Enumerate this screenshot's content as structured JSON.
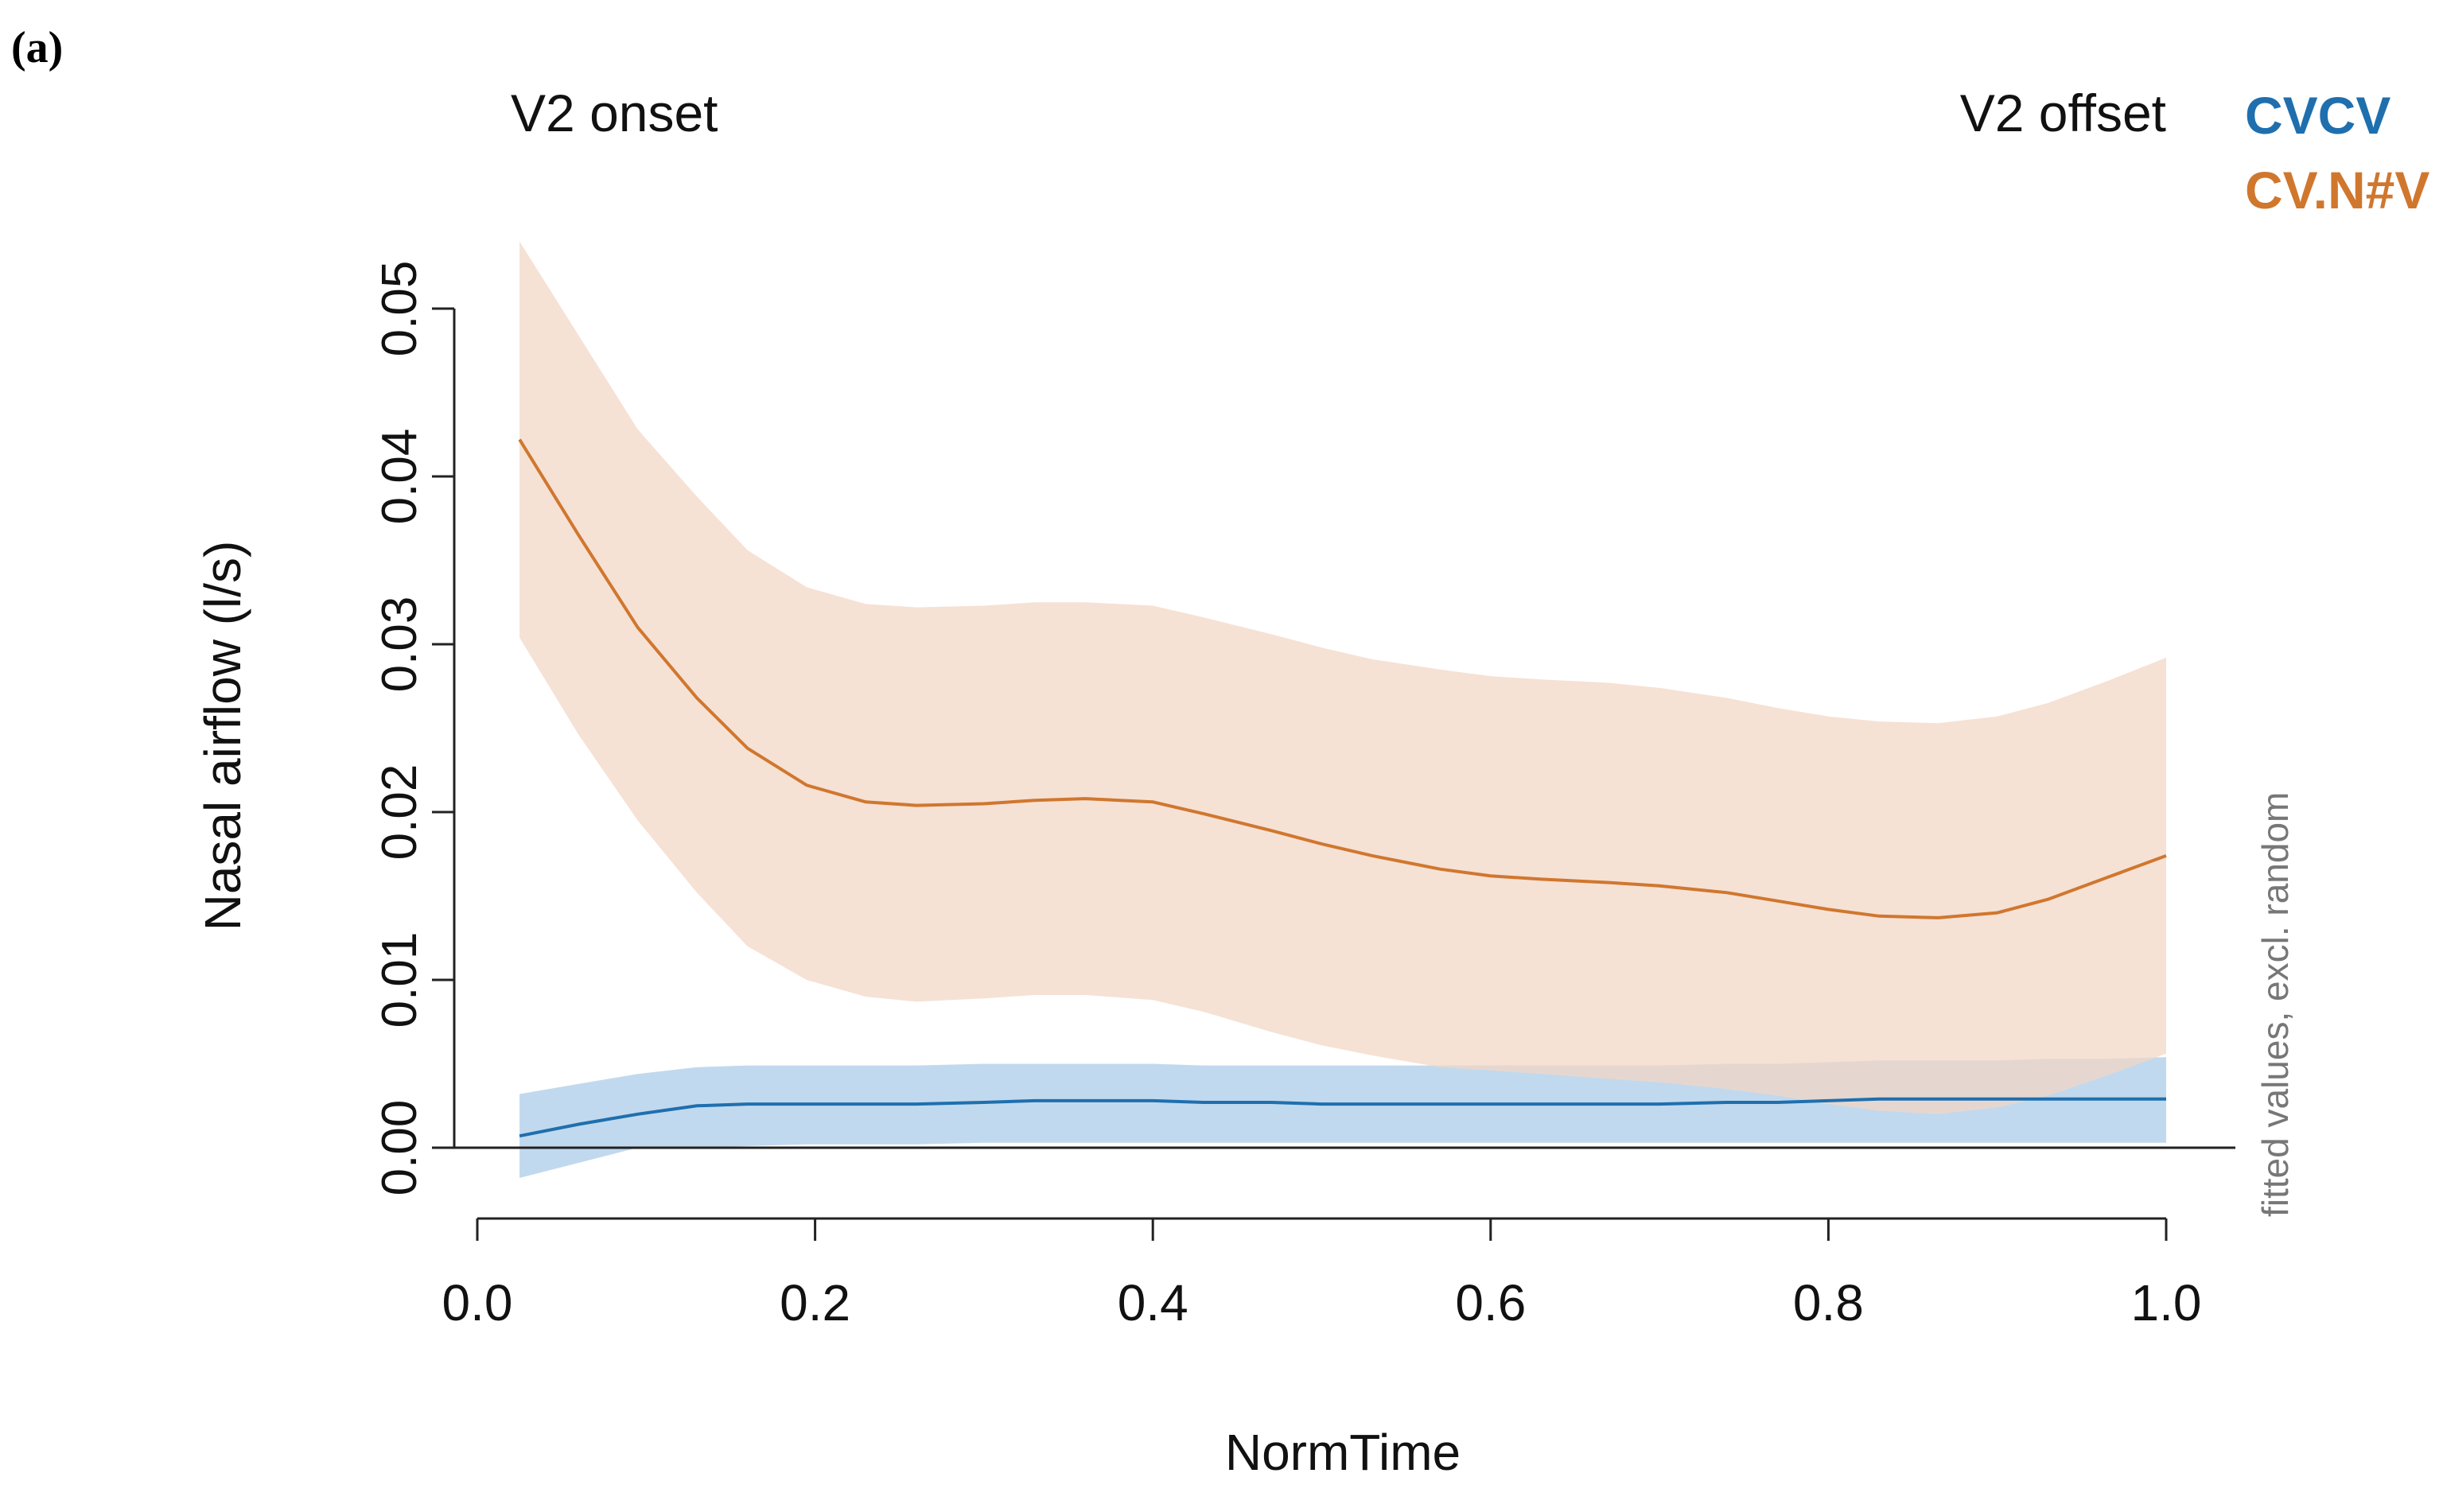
{
  "panel_label": "(a)",
  "annotations": {
    "onset": "V2 onset",
    "offset": "V2 offset",
    "side_note": "fitted values, excl. random"
  },
  "chart_data": {
    "type": "line",
    "title": "",
    "xlabel": "NormTime",
    "ylabel": "Nasal airflow (l/s)",
    "xlim": [
      0.0,
      1.0
    ],
    "ylim": [
      0.0,
      0.05
    ],
    "x_ticks": [
      "0.0",
      "0.2",
      "0.4",
      "0.6",
      "0.8",
      "1.0"
    ],
    "y_ticks": [
      "0.00",
      "0.01",
      "0.02",
      "0.03",
      "0.04",
      "0.05"
    ],
    "x_tick_values": [
      0.0,
      0.2,
      0.4,
      0.6,
      0.8,
      1.0
    ],
    "y_tick_values": [
      0.0,
      0.01,
      0.02,
      0.03,
      0.04,
      0.05
    ],
    "grid": false,
    "legend_position": "top-right",
    "x": [
      0.025,
      0.06,
      0.095,
      0.13,
      0.16,
      0.195,
      0.23,
      0.26,
      0.3,
      0.33,
      0.36,
      0.4,
      0.43,
      0.47,
      0.5,
      0.53,
      0.57,
      0.6,
      0.63,
      0.67,
      0.7,
      0.74,
      0.77,
      0.8,
      0.83,
      0.865,
      0.9,
      0.93,
      0.965,
      1.0
    ],
    "series": [
      {
        "name": "CVCV",
        "color": "#1f6fae",
        "band_color": "#a9cbe8",
        "values": [
          0.0007,
          0.0014,
          0.002,
          0.0025,
          0.0026,
          0.0026,
          0.0026,
          0.0026,
          0.0027,
          0.0028,
          0.0028,
          0.0028,
          0.0027,
          0.0027,
          0.0026,
          0.0026,
          0.0026,
          0.0026,
          0.0026,
          0.0026,
          0.0026,
          0.0027,
          0.0027,
          0.0028,
          0.0029,
          0.0029,
          0.0029,
          0.0029,
          0.0029,
          0.0029
        ],
        "lower": [
          -0.0018,
          -0.0009,
          0.0,
          0.0,
          0.0001,
          0.0002,
          0.0002,
          0.0002,
          0.0003,
          0.0003,
          0.0003,
          0.0003,
          0.0003,
          0.0003,
          0.0003,
          0.0003,
          0.0003,
          0.0003,
          0.0003,
          0.0003,
          0.0003,
          0.0003,
          0.0003,
          0.0003,
          0.0003,
          0.0003,
          0.0003,
          0.0003,
          0.0003,
          0.0003
        ],
        "upper": [
          0.0032,
          0.0038,
          0.0044,
          0.0048,
          0.0049,
          0.0049,
          0.0049,
          0.0049,
          0.005,
          0.005,
          0.005,
          0.005,
          0.0049,
          0.0049,
          0.0049,
          0.0049,
          0.0049,
          0.0049,
          0.0049,
          0.0049,
          0.0049,
          0.005,
          0.005,
          0.0051,
          0.0052,
          0.0052,
          0.0052,
          0.0053,
          0.0053,
          0.0054
        ]
      },
      {
        "name": "CV.N#V",
        "color": "#d0772e",
        "band_color": "#f3d6c5",
        "values": [
          0.0422,
          0.0365,
          0.031,
          0.0268,
          0.0238,
          0.0216,
          0.0206,
          0.0204,
          0.0205,
          0.0207,
          0.0208,
          0.0206,
          0.0199,
          0.0189,
          0.0181,
          0.0174,
          0.0166,
          0.0162,
          0.016,
          0.0158,
          0.0156,
          0.0152,
          0.0147,
          0.0142,
          0.0138,
          0.0137,
          0.014,
          0.0148,
          0.0161,
          0.0174
        ],
        "lower": [
          0.0304,
          0.0246,
          0.0195,
          0.0152,
          0.012,
          0.01,
          0.009,
          0.0087,
          0.0089,
          0.0091,
          0.0091,
          0.0088,
          0.0081,
          0.0069,
          0.0061,
          0.0055,
          0.0048,
          0.0046,
          0.0044,
          0.0041,
          0.0039,
          0.0035,
          0.0031,
          0.0026,
          0.0022,
          0.002,
          0.0024,
          0.0031,
          0.0043,
          0.0056
        ],
        "upper": [
          0.054,
          0.0484,
          0.0428,
          0.0388,
          0.0356,
          0.0334,
          0.0324,
          0.0322,
          0.0323,
          0.0325,
          0.0325,
          0.0323,
          0.0316,
          0.0306,
          0.0298,
          0.0291,
          0.0285,
          0.0281,
          0.0279,
          0.0277,
          0.0274,
          0.0268,
          0.0262,
          0.0257,
          0.0254,
          0.0253,
          0.0257,
          0.0265,
          0.0278,
          0.0292
        ]
      }
    ]
  }
}
